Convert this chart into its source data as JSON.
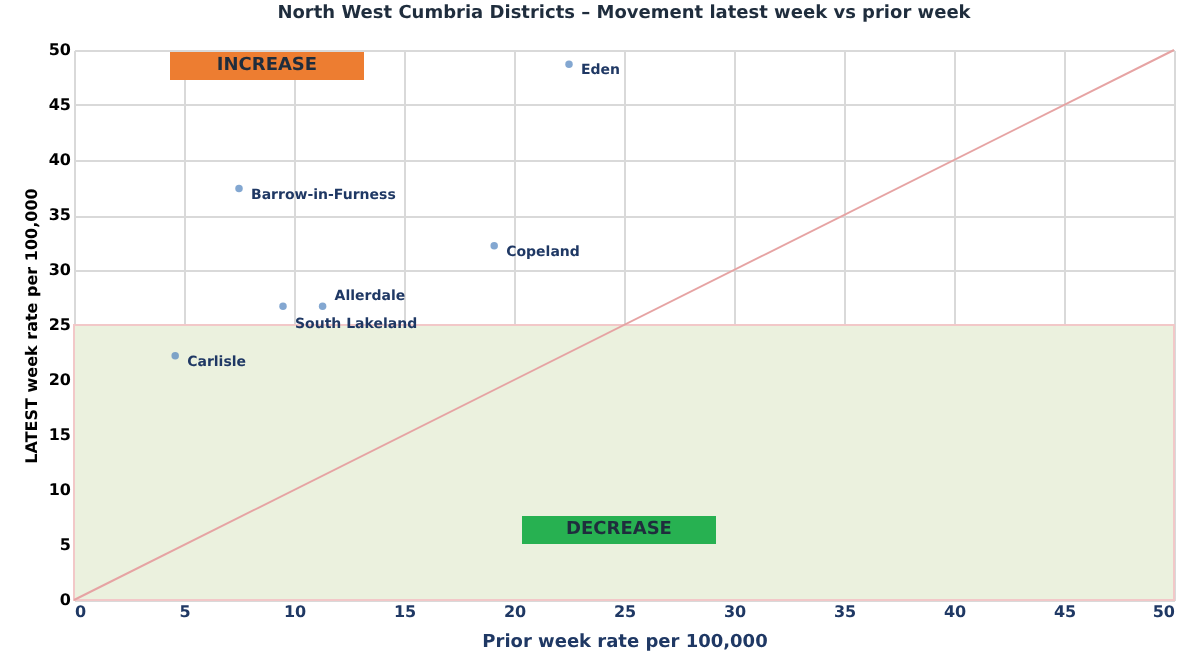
{
  "chart_data": {
    "type": "scatter",
    "title": "North West Cumbria Districts – Movement latest week vs prior week",
    "xlabel": "Prior week rate per 100,000",
    "ylabel": "LATEST week rate per 100,000",
    "xlim": [
      0,
      50
    ],
    "ylim": [
      0,
      50
    ],
    "xticks": [
      0,
      5,
      10,
      15,
      20,
      25,
      30,
      35,
      40,
      45,
      50
    ],
    "yticks": [
      0,
      5,
      10,
      15,
      20,
      25,
      30,
      35,
      40,
      45,
      50
    ],
    "grid": true,
    "marker": "circle",
    "series": [
      {
        "name": "Eden",
        "color": "#4f81bd",
        "x": [
          22.5
        ],
        "values": [
          48.7
        ]
      },
      {
        "name": "Barrow-in-Furness",
        "color": "#4f81bd",
        "x": [
          7.5
        ],
        "values": [
          37.4
        ]
      },
      {
        "name": "Copeland",
        "color": "#4f81bd",
        "x": [
          19.1
        ],
        "values": [
          32.2
        ]
      },
      {
        "name": "Allerdale",
        "color": "#4f81bd",
        "x": [
          11.3
        ],
        "values": [
          26.7
        ]
      },
      {
        "name": "South Lakeland",
        "color": "#4f81bd",
        "x": [
          9.5
        ],
        "values": [
          26.7
        ]
      },
      {
        "name": "Carlisle",
        "color": "#4f81bd",
        "x": [
          4.6
        ],
        "values": [
          22.2
        ]
      },
      {
        "type": "line",
        "marker": "none",
        "color": "#e6a3a3",
        "x": [
          0,
          50
        ],
        "values": [
          0,
          50
        ]
      }
    ],
    "bands": [
      {
        "axis": "y",
        "from": 0,
        "to": 25,
        "color": "#ebf1de"
      }
    ],
    "annotations": [
      "INCREASE",
      "DECREASE"
    ]
  }
}
